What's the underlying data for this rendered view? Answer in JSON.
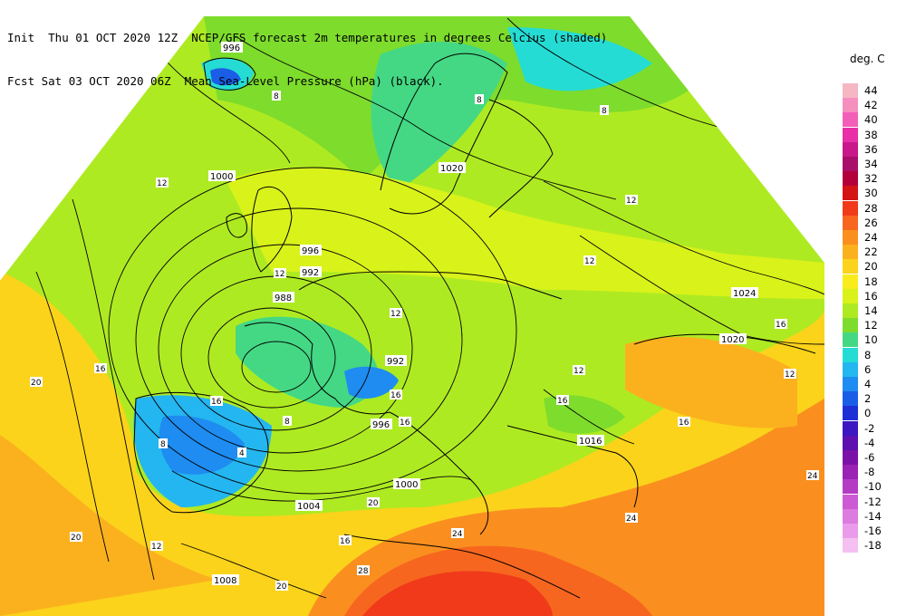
{
  "header": {
    "init_line": "Init  Thu 01 OCT 2020 12Z",
    "fcst_line": "Fcst Sat 03 OCT 2020 06Z",
    "title_line1": "NCEP/GFS forecast 2m temperatures in degrees Celcius (shaded)",
    "title_line2": "Mean Sea-Level Pressure (hPa) (black)."
  },
  "legend": {
    "title": "deg. C",
    "levels": [
      {
        "label": "44",
        "color": "#f5b7c4"
      },
      {
        "label": "42",
        "color": "#f58fbe"
      },
      {
        "label": "40",
        "color": "#f25fb8"
      },
      {
        "label": "38",
        "color": "#e82fa6"
      },
      {
        "label": "36",
        "color": "#c8198a"
      },
      {
        "label": "34",
        "color": "#a8106a"
      },
      {
        "label": "32",
        "color": "#b3003a"
      },
      {
        "label": "30",
        "color": "#d41414"
      },
      {
        "label": "28",
        "color": "#f03a1a"
      },
      {
        "label": "26",
        "color": "#f7661f"
      },
      {
        "label": "24",
        "color": "#fa8f1f"
      },
      {
        "label": "22",
        "color": "#fbb11e"
      },
      {
        "label": "20",
        "color": "#fbd31b"
      },
      {
        "label": "18",
        "color": "#f8ec1b"
      },
      {
        "label": "16",
        "color": "#d9f21a"
      },
      {
        "label": "14",
        "color": "#aeea22"
      },
      {
        "label": "12",
        "color": "#7edc2c"
      },
      {
        "label": "10",
        "color": "#44d884"
      },
      {
        "label": "8",
        "color": "#25dcd4"
      },
      {
        "label": "6",
        "color": "#24b6f0"
      },
      {
        "label": "4",
        "color": "#1e8cf0"
      },
      {
        "label": "2",
        "color": "#1a5ee8"
      },
      {
        "label": "0",
        "color": "#1f2fd6"
      },
      {
        "label": "-2",
        "color": "#3c16c0"
      },
      {
        "label": "-4",
        "color": "#5d0fb0"
      },
      {
        "label": "-6",
        "color": "#7b12a8"
      },
      {
        "label": "-8",
        "color": "#9a22b4"
      },
      {
        "label": "-10",
        "color": "#b43cc4"
      },
      {
        "label": "-12",
        "color": "#cb5ad4"
      },
      {
        "label": "-14",
        "color": "#dc7be0"
      },
      {
        "label": "-16",
        "color": "#ea9ceb"
      },
      {
        "label": "-18",
        "color": "#f4c0f2"
      }
    ]
  },
  "map": {
    "isobar_labels": [
      "996",
      "1000",
      "996",
      "992",
      "988",
      "992",
      "996",
      "1000",
      "1004",
      "1008",
      "1020",
      "1024",
      "1020",
      "1016"
    ],
    "temp_labels": [
      "8",
      "8",
      "8",
      "12",
      "12",
      "12",
      "12",
      "12",
      "12",
      "16",
      "16",
      "16",
      "16",
      "16",
      "16",
      "20",
      "20",
      "20",
      "20",
      "24",
      "24",
      "24",
      "28",
      "4",
      "8",
      "8",
      "12",
      "16",
      "16",
      "12"
    ]
  }
}
